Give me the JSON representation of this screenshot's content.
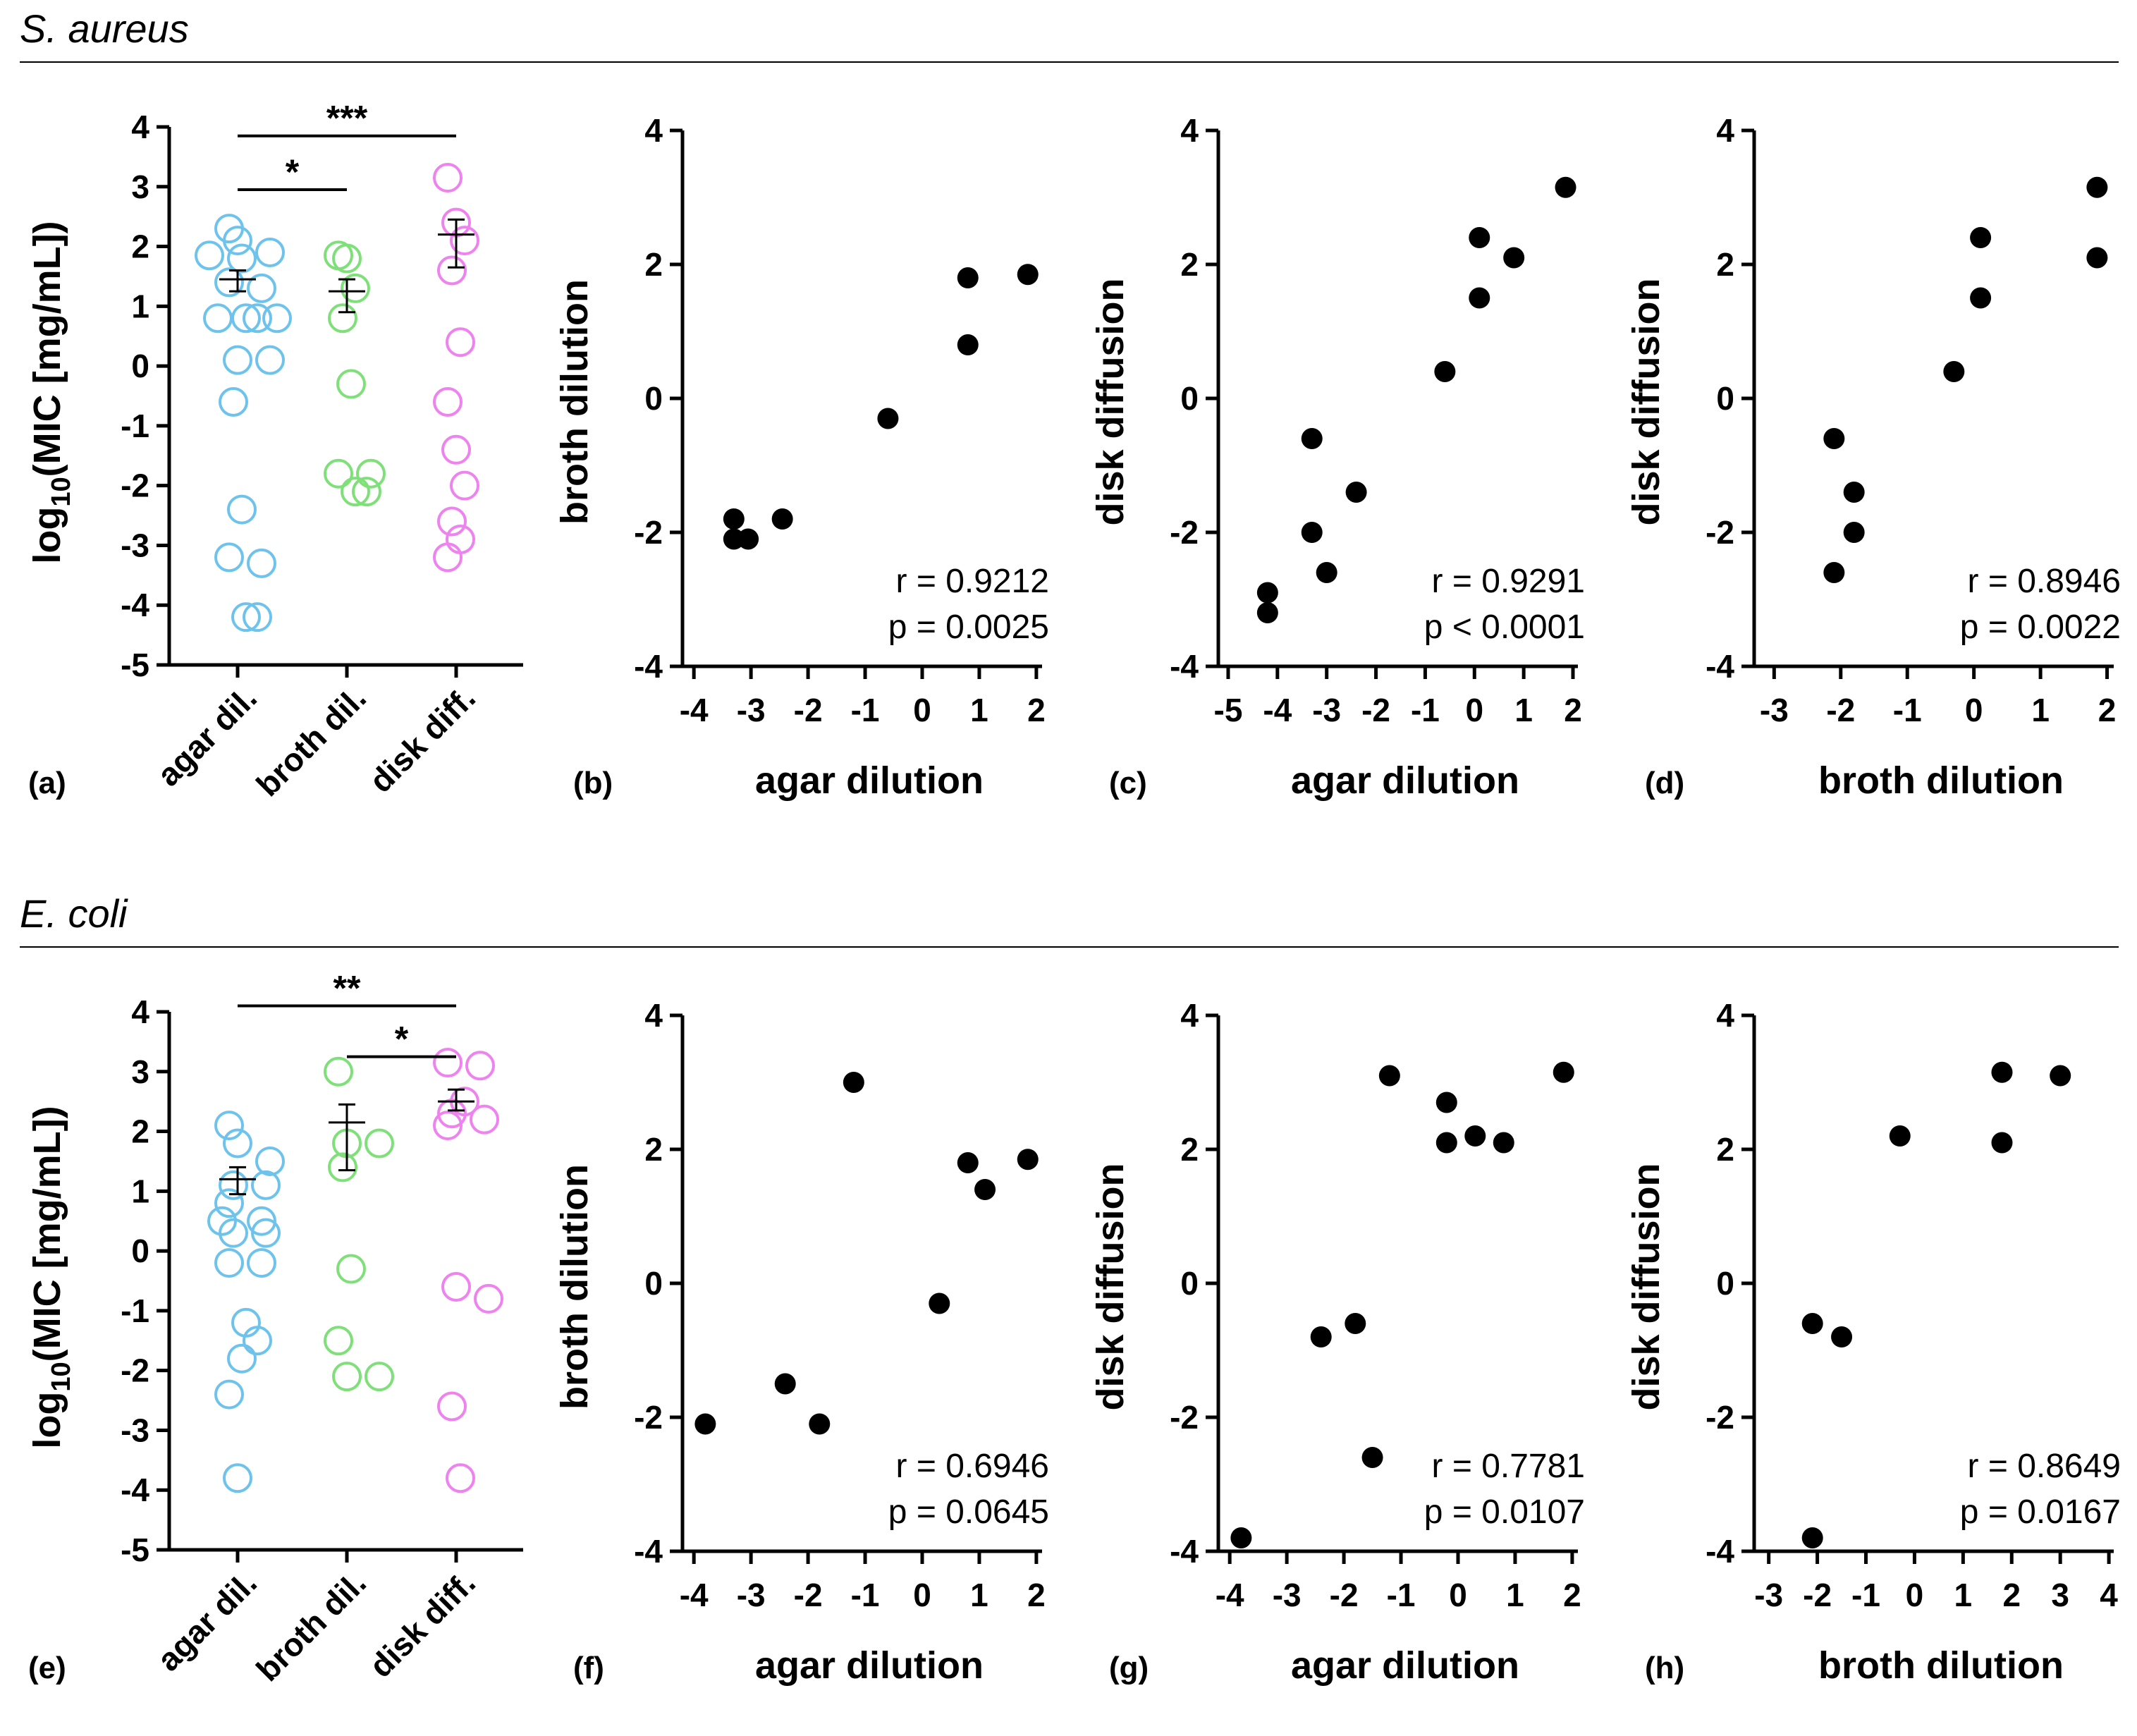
{
  "colors": {
    "agar": "#6EC3EC",
    "broth": "#7FE07A",
    "disk": "#EE82EE",
    "point": "#000000"
  },
  "sections": [
    {
      "title": "S. aureus",
      "strip": {
        "label": "(a)",
        "ylabel_main": "log",
        "ylabel_sub": "10",
        "ylabel_rest": "(MIC [mg/mL])",
        "ylim": [
          -5,
          4
        ],
        "yticks": [
          4,
          3,
          2,
          1,
          0,
          -1,
          -2,
          -3,
          -4,
          -5
        ],
        "categories": [
          "agar dil.",
          "broth dil.",
          "disk diff."
        ],
        "groups": [
          {
            "values": [
              2.3,
              2.1,
              1.9,
              1.85,
              1.8,
              1.4,
              1.3,
              0.8,
              0.8,
              0.8,
              0.8,
              0.1,
              0.1,
              -0.6,
              -2.4,
              -3.2,
              -3.3,
              -4.2,
              -4.2
            ],
            "mean": 1.45,
            "sem": [
              1.25,
              1.6
            ]
          },
          {
            "values": [
              1.85,
              1.8,
              1.3,
              0.8,
              -0.3,
              -1.8,
              -1.8,
              -2.1,
              -2.1
            ],
            "mean": 1.25,
            "sem": [
              0.9,
              1.45
            ]
          },
          {
            "values": [
              3.15,
              2.4,
              2.1,
              1.6,
              0.4,
              -0.6,
              -1.4,
              -2.0,
              -2.6,
              -2.9,
              -3.2
            ],
            "mean": 2.2,
            "sem": [
              1.65,
              2.45
            ]
          }
        ],
        "sig": [
          {
            "from": 0,
            "to": 2,
            "text": "***",
            "y": 3.85
          },
          {
            "from": 0,
            "to": 1,
            "text": "*",
            "y": 2.95
          }
        ]
      },
      "scatters": [
        {
          "label": "(b)",
          "xlabel": "agar dilution",
          "ylabel": "broth dilution",
          "xlim": [
            -4.2,
            2.1
          ],
          "xticks": [
            -4,
            -3,
            -2,
            -1,
            0,
            1,
            2
          ],
          "ylim": [
            -4,
            4
          ],
          "yticks": [
            4,
            2,
            0,
            -2,
            -4
          ],
          "r": "r = 0.9212",
          "p": "p = 0.0025",
          "points": [
            [
              -3.3,
              -1.8
            ],
            [
              -3.3,
              -2.1
            ],
            [
              -3.05,
              -2.1
            ],
            [
              -2.45,
              -1.8
            ],
            [
              -0.6,
              -0.3
            ],
            [
              0.8,
              1.8
            ],
            [
              0.8,
              0.8
            ],
            [
              1.85,
              1.85
            ]
          ]
        },
        {
          "label": "(c)",
          "xlabel": "agar dilution",
          "ylabel": "disk diffusion",
          "xlim": [
            -5.2,
            2.1
          ],
          "xticks": [
            -5,
            -4,
            -3,
            -2,
            -1,
            0,
            1,
            2
          ],
          "ylim": [
            -4,
            4
          ],
          "yticks": [
            4,
            2,
            0,
            -2,
            -4
          ],
          "r": "r = 0.9291",
          "p": "p < 0.0001",
          "points": [
            [
              -4.2,
              -2.9
            ],
            [
              -4.2,
              -3.2
            ],
            [
              -3.3,
              -0.6
            ],
            [
              -3.3,
              -2.0
            ],
            [
              -3.0,
              -2.6
            ],
            [
              -2.4,
              -1.4
            ],
            [
              -0.6,
              0.4
            ],
            [
              0.1,
              2.4
            ],
            [
              0.1,
              1.5
            ],
            [
              0.8,
              2.1
            ],
            [
              1.85,
              3.15
            ]
          ]
        },
        {
          "label": "(d)",
          "xlabel": "broth dilution",
          "ylabel": "disk diffusion",
          "xlim": [
            -3.3,
            2.1
          ],
          "xticks": [
            -3,
            -2,
            -1,
            0,
            1,
            2
          ],
          "ylim": [
            -4,
            4
          ],
          "yticks": [
            4,
            2,
            0,
            -2,
            -4
          ],
          "r": "r = 0.8946",
          "p": "p = 0.0022",
          "points": [
            [
              -2.1,
              -0.6
            ],
            [
              -2.1,
              -2.6
            ],
            [
              -1.8,
              -1.4
            ],
            [
              -1.8,
              -2.0
            ],
            [
              -0.3,
              0.4
            ],
            [
              0.1,
              2.4
            ],
            [
              0.1,
              1.5
            ],
            [
              1.85,
              3.15
            ],
            [
              1.85,
              2.1
            ]
          ]
        }
      ]
    },
    {
      "title": "E. coli",
      "strip": {
        "label": "(e)",
        "ylabel_main": "log",
        "ylabel_sub": "10",
        "ylabel_rest": "(MIC [mg/mL])",
        "ylim": [
          -5,
          4
        ],
        "yticks": [
          4,
          3,
          2,
          1,
          0,
          -1,
          -2,
          -3,
          -4,
          -5
        ],
        "categories": [
          "agar dil.",
          "broth dil.",
          "disk diff."
        ],
        "groups": [
          {
            "values": [
              2.1,
              1.8,
              1.5,
              1.1,
              1.1,
              0.8,
              0.5,
              0.5,
              0.3,
              0.3,
              -0.2,
              -0.2,
              -1.2,
              -1.5,
              -1.8,
              -2.4,
              -3.8
            ],
            "mean": 1.2,
            "sem": [
              0.95,
              1.4
            ]
          },
          {
            "values": [
              3.0,
              1.8,
              1.8,
              1.4,
              -0.3,
              -1.5,
              -2.1,
              -2.1
            ],
            "mean": 2.15,
            "sem": [
              1.35,
              2.45
            ]
          },
          {
            "values": [
              3.15,
              3.1,
              2.5,
              2.3,
              2.2,
              2.1,
              -0.6,
              -0.8,
              -2.6,
              -3.8
            ],
            "mean": 2.5,
            "sem": [
              2.35,
              2.7
            ]
          }
        ],
        "sig": [
          {
            "from": 0,
            "to": 2,
            "text": "**",
            "y": 4.1
          },
          {
            "from": 1,
            "to": 2,
            "text": "*",
            "y": 3.25
          }
        ]
      },
      "scatters": [
        {
          "label": "(f)",
          "xlabel": "agar dilution",
          "ylabel": "broth dilution",
          "xlim": [
            -4.2,
            2.1
          ],
          "xticks": [
            -4,
            -3,
            -2,
            -1,
            0,
            1,
            2
          ],
          "ylim": [
            -4,
            4
          ],
          "yticks": [
            4,
            2,
            0,
            -2,
            -4
          ],
          "r": "r = 0.6946",
          "p": "p = 0.0645",
          "points": [
            [
              -3.8,
              -2.1
            ],
            [
              -2.4,
              -1.5
            ],
            [
              -1.8,
              -2.1
            ],
            [
              -1.2,
              3.0
            ],
            [
              0.3,
              -0.3
            ],
            [
              0.8,
              1.8
            ],
            [
              1.1,
              1.4
            ],
            [
              1.85,
              1.85
            ]
          ]
        },
        {
          "label": "(g)",
          "xlabel": "agar dilution",
          "ylabel": "disk diffusion",
          "xlim": [
            -4.2,
            2.1
          ],
          "xticks": [
            -4,
            -3,
            -2,
            -1,
            0,
            1,
            2
          ],
          "ylim": [
            -4,
            4
          ],
          "yticks": [
            4,
            2,
            0,
            -2,
            -4
          ],
          "r": "r = 0.7781",
          "p": "p = 0.0107",
          "points": [
            [
              -3.8,
              -3.8
            ],
            [
              -2.4,
              -0.8
            ],
            [
              -1.8,
              -0.6
            ],
            [
              -1.5,
              -2.6
            ],
            [
              -1.2,
              3.1
            ],
            [
              -0.2,
              2.7
            ],
            [
              -0.2,
              2.1
            ],
            [
              0.3,
              2.2
            ],
            [
              0.8,
              2.1
            ],
            [
              1.85,
              3.15
            ]
          ]
        },
        {
          "label": "(h)",
          "xlabel": "broth dilution",
          "ylabel": "disk diffusion",
          "xlim": [
            -3.3,
            4.1
          ],
          "xticks": [
            -3,
            -2,
            -1,
            0,
            1,
            2,
            3,
            4
          ],
          "ylim": [
            -4,
            4
          ],
          "yticks": [
            4,
            2,
            0,
            -2,
            -4
          ],
          "r": "r = 0.8649",
          "p": "p = 0.0167",
          "points": [
            [
              -2.1,
              -0.6
            ],
            [
              -2.1,
              -3.8
            ],
            [
              -1.5,
              -0.8
            ],
            [
              -0.3,
              2.2
            ],
            [
              1.8,
              3.15
            ],
            [
              1.8,
              2.1
            ],
            [
              3.0,
              3.1
            ]
          ]
        }
      ]
    }
  ],
  "chart_data": [
    {
      "type": "scatter",
      "panel": "(a)",
      "title": "S. aureus",
      "ylabel": "log10(MIC [mg/mL])",
      "categories": [
        "agar dil.",
        "broth dil.",
        "disk diff."
      ],
      "ylim": [
        -5,
        4
      ]
    },
    {
      "type": "scatter",
      "panel": "(b)",
      "xlabel": "agar dilution",
      "ylabel": "broth dilution",
      "r": 0.9212,
      "p": 0.0025
    },
    {
      "type": "scatter",
      "panel": "(c)",
      "xlabel": "agar dilution",
      "ylabel": "disk diffusion",
      "r": 0.9291,
      "p": "< 0.0001"
    },
    {
      "type": "scatter",
      "panel": "(d)",
      "xlabel": "broth dilution",
      "ylabel": "disk diffusion",
      "r": 0.8946,
      "p": 0.0022
    },
    {
      "type": "scatter",
      "panel": "(e)",
      "title": "E. coli",
      "ylabel": "log10(MIC [mg/mL])",
      "categories": [
        "agar dil.",
        "broth dil.",
        "disk diff."
      ],
      "ylim": [
        -5,
        4
      ]
    },
    {
      "type": "scatter",
      "panel": "(f)",
      "xlabel": "agar dilution",
      "ylabel": "broth dilution",
      "r": 0.6946,
      "p": 0.0645
    },
    {
      "type": "scatter",
      "panel": "(g)",
      "xlabel": "agar dilution",
      "ylabel": "disk diffusion",
      "r": 0.7781,
      "p": 0.0107
    },
    {
      "type": "scatter",
      "panel": "(h)",
      "xlabel": "broth dilution",
      "ylabel": "disk diffusion",
      "r": 0.8649,
      "p": 0.0167
    }
  ]
}
